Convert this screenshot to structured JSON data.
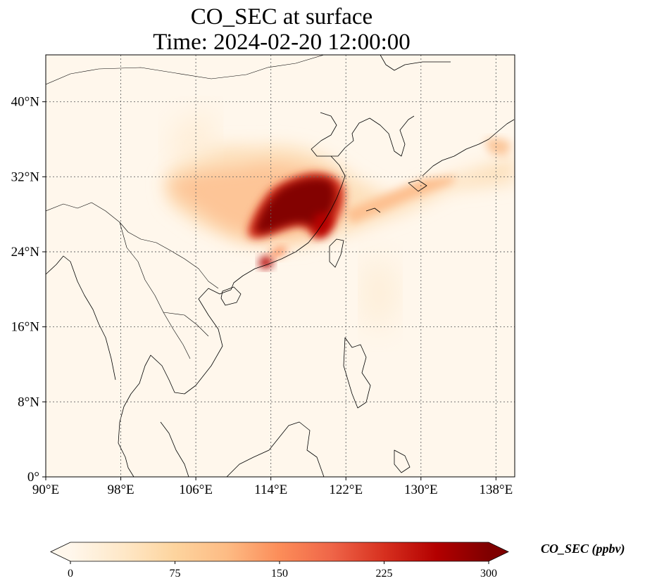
{
  "title": {
    "line1": "CO_SEC at surface",
    "line2": "Time: 2024-02-20 12:00:00"
  },
  "map": {
    "extent": {
      "lon": [
        90,
        140
      ],
      "lat": [
        0,
        45
      ]
    },
    "lon_ticks": [
      {
        "value": 90,
        "label": "90°E"
      },
      {
        "value": 98,
        "label": "98°E"
      },
      {
        "value": 106,
        "label": "106°E"
      },
      {
        "value": 114,
        "label": "114°E"
      },
      {
        "value": 122,
        "label": "122°E"
      },
      {
        "value": 130,
        "label": "130°E"
      },
      {
        "value": 138,
        "label": "138°E"
      }
    ],
    "lat_ticks": [
      {
        "value": 0,
        "label": "0°"
      },
      {
        "value": 8,
        "label": "8°N"
      },
      {
        "value": 16,
        "label": "16°N"
      },
      {
        "value": 24,
        "label": "24°N"
      },
      {
        "value": 32,
        "label": "32°N"
      },
      {
        "value": 40,
        "label": "40°N"
      }
    ],
    "gridlines": true
  },
  "colorbar": {
    "label": "CO_SEC (ppbv)",
    "min": 0,
    "max": 300,
    "ticks": [
      "0",
      "75",
      "150",
      "225",
      "300"
    ],
    "extend": "both",
    "colormap": [
      "#fff7ec",
      "#fee8c8",
      "#fdd49e",
      "#fdbb84",
      "#fc8d59",
      "#ef6548",
      "#d7301f",
      "#b30000",
      "#7f0000"
    ]
  }
}
